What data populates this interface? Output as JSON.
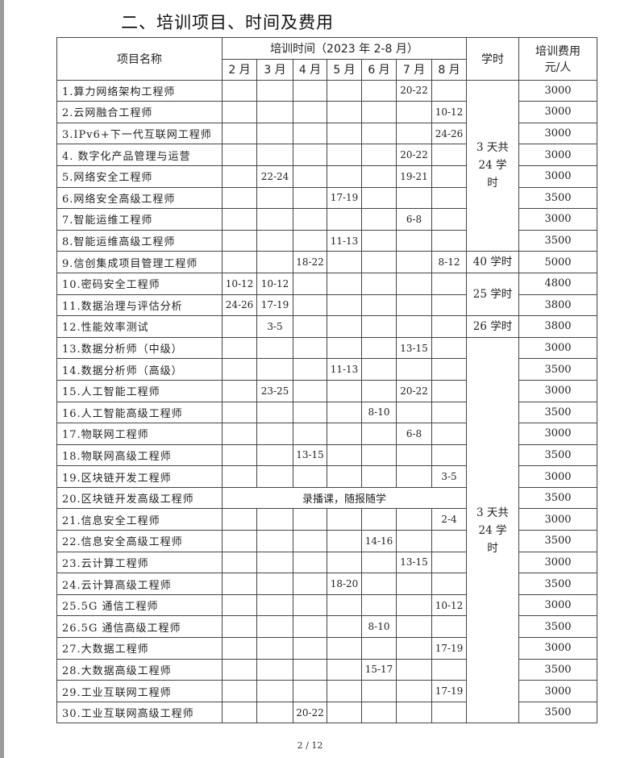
{
  "title": "二、培训项目、时间及费用",
  "header": {
    "name": "项目名称",
    "period": "培训时间（2023 年 2-8 月）",
    "hours": "学时",
    "fee_line1": "培训费用",
    "fee_line2": "元/人",
    "months": [
      "2 月",
      "3 月",
      "4 月",
      "5 月",
      "6 月",
      "7 月",
      "8 月"
    ]
  },
  "rows": [
    {
      "name": "1.算力网络架构工程师",
      "m": [
        "",
        "",
        "",
        "",
        "",
        "20-22",
        ""
      ],
      "fee": "3000"
    },
    {
      "name": "2.云网融合工程师",
      "m": [
        "",
        "",
        "",
        "",
        "",
        "",
        "10-12"
      ],
      "fee": "3000"
    },
    {
      "name": "3.IPv6+下一代互联网工程师",
      "m": [
        "",
        "",
        "",
        "",
        "",
        "",
        "24-26"
      ],
      "fee": "3000"
    },
    {
      "name": "4. 数字化产品管理与运营",
      "m": [
        "",
        "",
        "",
        "",
        "",
        "20-22",
        ""
      ],
      "fee": "3000"
    },
    {
      "name": "5.网络安全工程师",
      "m": [
        "",
        "22-24",
        "",
        "",
        "",
        "19-21",
        ""
      ],
      "fee": "3000"
    },
    {
      "name": "6.网络安全高级工程师",
      "m": [
        "",
        "",
        "",
        "17-19",
        "",
        "",
        ""
      ],
      "fee": "3500"
    },
    {
      "name": "7.智能运维工程师",
      "m": [
        "",
        "",
        "",
        "",
        "",
        "6-8",
        ""
      ],
      "fee": "3000"
    },
    {
      "name": "8.智能运维高级工程师",
      "m": [
        "",
        "",
        "",
        "11-13",
        "",
        "",
        ""
      ],
      "fee": "3500"
    },
    {
      "name": "9.信创集成项目管理工程师",
      "m": [
        "",
        "",
        "18-22",
        "",
        "",
        "",
        "8-12"
      ],
      "fee": "5000"
    },
    {
      "name": "10.密码安全工程师",
      "m": [
        "10-12",
        "10-12",
        "",
        "",
        "",
        "",
        ""
      ],
      "fee": "4800"
    },
    {
      "name": "11.数据治理与评估分析",
      "m": [
        "24-26",
        "17-19",
        "",
        "",
        "",
        "",
        ""
      ],
      "fee": "3800"
    },
    {
      "name": "12.性能效率测试",
      "m": [
        "",
        "3-5",
        "",
        "",
        "",
        "",
        ""
      ],
      "fee": "3800"
    },
    {
      "name": "13.数据分析师（中级）",
      "m": [
        "",
        "",
        "",
        "",
        "",
        "13-15",
        ""
      ],
      "fee": "3000"
    },
    {
      "name": "14.数据分析师（高级）",
      "m": [
        "",
        "",
        "",
        "11-13",
        "",
        "",
        ""
      ],
      "fee": "3500"
    },
    {
      "name": "15.人工智能工程师",
      "m": [
        "",
        "23-25",
        "",
        "",
        "",
        "20-22",
        ""
      ],
      "fee": "3000"
    },
    {
      "name": "16.人工智能高级工程师",
      "m": [
        "",
        "",
        "",
        "",
        "8-10",
        "",
        ""
      ],
      "fee": "3500"
    },
    {
      "name": "17.物联网工程师",
      "m": [
        "",
        "",
        "",
        "",
        "",
        "6-8",
        ""
      ],
      "fee": "3000"
    },
    {
      "name": "18.物联网高级工程师",
      "m": [
        "",
        "",
        "13-15",
        "",
        "",
        "",
        ""
      ],
      "fee": "3500"
    },
    {
      "name": "19.区块链开发工程师",
      "m": [
        "",
        "",
        "",
        "",
        "",
        "",
        "3-5"
      ],
      "fee": "3000"
    },
    {
      "name": "20.区块链开发高级工程师",
      "merged": "录播课，随报随学",
      "fee": "3500"
    },
    {
      "name": "21.信息安全工程师",
      "m": [
        "",
        "",
        "",
        "",
        "",
        "",
        "2-4"
      ],
      "fee": "3000"
    },
    {
      "name": "22.信息安全高级工程师",
      "m": [
        "",
        "",
        "",
        "",
        "14-16",
        "",
        ""
      ],
      "fee": "3500"
    },
    {
      "name": "23.云计算工程师",
      "m": [
        "",
        "",
        "",
        "",
        "",
        "13-15",
        ""
      ],
      "fee": "3000"
    },
    {
      "name": "24.云计算高级工程师",
      "m": [
        "",
        "",
        "",
        "18-20",
        "",
        "",
        ""
      ],
      "fee": "3500"
    },
    {
      "name": "25.5G 通信工程师",
      "m": [
        "",
        "",
        "",
        "",
        "",
        "",
        "10-12"
      ],
      "fee": "3000"
    },
    {
      "name": "26.5G 通信高级工程师",
      "m": [
        "",
        "",
        "",
        "",
        "8-10",
        "",
        ""
      ],
      "fee": "3500"
    },
    {
      "name": "27.大数据工程师",
      "m": [
        "",
        "",
        "",
        "",
        "",
        "",
        "17-19"
      ],
      "fee": "3000"
    },
    {
      "name": "28.大数据高级工程师",
      "m": [
        "",
        "",
        "",
        "",
        "15-17",
        "",
        ""
      ],
      "fee": "3500"
    },
    {
      "name": "29.工业互联网工程师",
      "m": [
        "",
        "",
        "",
        "",
        "",
        "",
        "17-19"
      ],
      "fee": "3000"
    },
    {
      "name": "30.工业互联网高级工程师",
      "m": [
        "",
        "",
        "20-22",
        "",
        "",
        "",
        ""
      ],
      "fee": "3500"
    }
  ],
  "hours_groups": [
    {
      "start": 0,
      "span": 8,
      "text": "3 天共 24 学时"
    },
    {
      "start": 8,
      "span": 1,
      "text": "40 学时"
    },
    {
      "start": 9,
      "span": 2,
      "text": "25 学时"
    },
    {
      "start": 11,
      "span": 1,
      "text": "26 学时"
    },
    {
      "start": 12,
      "span": 18,
      "text": "3 天共 24 学时"
    }
  ],
  "page_number": "2 / 12"
}
